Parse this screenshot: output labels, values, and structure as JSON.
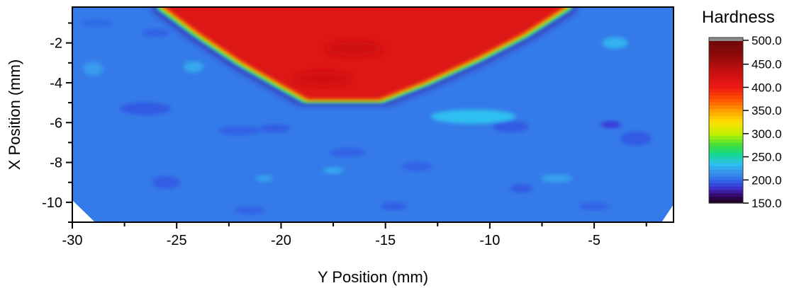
{
  "chart_data": {
    "type": "heatmap",
    "title": "",
    "xlabel": "Y Position (mm)",
    "ylabel": "X Position (mm)",
    "xlim": [
      -30,
      -1.2
    ],
    "ylim": [
      -11,
      -0.2
    ],
    "x_ticks": [
      -30,
      -25,
      -20,
      -15,
      -10,
      -5
    ],
    "x_tick_labels": [
      "-30",
      "-25",
      "-20",
      "-15",
      "-10",
      "-5"
    ],
    "y_ticks": [
      -2,
      -4,
      -6,
      -8,
      -10
    ],
    "y_tick_labels": [
      "-2",
      "-4",
      "-6",
      "-8",
      "-10"
    ],
    "grid": false,
    "legend": {
      "title": "Hardness",
      "placement": "right",
      "levels": [
        150.0,
        200.0,
        250.0,
        300.0,
        350.0,
        400.0,
        450.0,
        500.0
      ],
      "labels": [
        "150.0",
        "200.0",
        "250.0",
        "300.0",
        "350.0",
        "400.0",
        "450.0",
        "500.0"
      ]
    },
    "colorscale": [
      {
        "value": 150,
        "color": "#1a0010"
      },
      {
        "value": 170,
        "color": "#3a0a78"
      },
      {
        "value": 185,
        "color": "#3b37d8"
      },
      {
        "value": 200,
        "color": "#2f6be8"
      },
      {
        "value": 215,
        "color": "#3a8eea"
      },
      {
        "value": 235,
        "color": "#2fc0f0"
      },
      {
        "value": 255,
        "color": "#15d894"
      },
      {
        "value": 275,
        "color": "#3be03b"
      },
      {
        "value": 300,
        "color": "#c0f000"
      },
      {
        "value": 325,
        "color": "#ffe000"
      },
      {
        "value": 350,
        "color": "#ffa000"
      },
      {
        "value": 375,
        "color": "#ff5000"
      },
      {
        "value": 400,
        "color": "#ee1a14"
      },
      {
        "value": 430,
        "color": "#cc1010"
      },
      {
        "value": 470,
        "color": "#8e0a0a"
      },
      {
        "value": 500,
        "color": "#6e0808"
      }
    ],
    "fields": {
      "base_hardness": 207,
      "hard_zone_hardness": 415,
      "trough_hardness": 178
    },
    "hard_zone_boundary": [
      [
        -25.8,
        -0.2
      ],
      [
        -24.0,
        -1.6
      ],
      [
        -22.0,
        -3.0
      ],
      [
        -20.0,
        -4.2
      ],
      [
        -18.8,
        -4.9
      ],
      [
        -15.2,
        -4.9
      ],
      [
        -13.0,
        -4.0
      ],
      [
        -10.5,
        -2.8
      ],
      [
        -8.3,
        -1.6
      ],
      [
        -6.2,
        -0.2
      ]
    ],
    "low_spots": [
      {
        "x": -16.5,
        "y": -2.3,
        "value": 395
      },
      {
        "x": -18.0,
        "y": -3.8,
        "value": 395
      },
      {
        "x": -26.5,
        "y": -5.3,
        "value": 195
      },
      {
        "x": -22.0,
        "y": -6.4,
        "value": 198
      },
      {
        "x": -20.3,
        "y": -6.3,
        "value": 196
      },
      {
        "x": -9.0,
        "y": -6.2,
        "value": 195
      },
      {
        "x": -4.2,
        "y": -6.1,
        "value": 185
      },
      {
        "x": -3.0,
        "y": -6.8,
        "value": 195
      },
      {
        "x": -25.5,
        "y": -9.0,
        "value": 196
      },
      {
        "x": -16.8,
        "y": -7.5,
        "value": 198
      },
      {
        "x": -13.5,
        "y": -8.2,
        "value": 198
      },
      {
        "x": -8.5,
        "y": -9.3,
        "value": 195
      },
      {
        "x": -14.6,
        "y": -10.2,
        "value": 196
      },
      {
        "x": -21.5,
        "y": -10.4,
        "value": 198
      },
      {
        "x": -5.0,
        "y": -10.2,
        "value": 198
      },
      {
        "x": -26.0,
        "y": -1.5,
        "value": 198
      },
      {
        "x": -28.8,
        "y": -1.0,
        "value": 200
      }
    ],
    "high_spots": [
      {
        "x": -10.8,
        "y": -5.7,
        "value": 235
      },
      {
        "x": -24.2,
        "y": -3.2,
        "value": 225
      },
      {
        "x": -29.0,
        "y": -3.3,
        "value": 220
      },
      {
        "x": -6.8,
        "y": -8.8,
        "value": 222
      },
      {
        "x": -4.0,
        "y": -2.0,
        "value": 230
      },
      {
        "x": -17.5,
        "y": -8.4,
        "value": 225
      },
      {
        "x": -20.8,
        "y": -8.8,
        "value": 222
      }
    ]
  }
}
